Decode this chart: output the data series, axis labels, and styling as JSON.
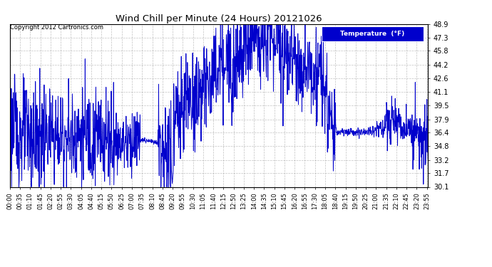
{
  "title": "Wind Chill per Minute (24 Hours) 20121026",
  "copyright_text": "Copyright 2012 Cartronics.com",
  "legend_label": "Temperature  (°F)",
  "line_color": "#0000CC",
  "background_color": "#ffffff",
  "plot_bg_color": "#ffffff",
  "grid_color": "#999999",
  "ylim": [
    30.1,
    48.9
  ],
  "yticks": [
    30.1,
    31.7,
    33.2,
    34.8,
    36.4,
    37.9,
    39.5,
    41.1,
    42.6,
    44.2,
    45.8,
    47.3,
    48.9
  ],
  "x_tick_labels": [
    "00:00",
    "00:35",
    "01:10",
    "01:45",
    "02:20",
    "02:55",
    "03:30",
    "04:05",
    "04:40",
    "05:15",
    "05:50",
    "06:25",
    "07:00",
    "07:35",
    "08:10",
    "08:45",
    "09:20",
    "09:55",
    "10:30",
    "11:05",
    "11:40",
    "12:15",
    "12:50",
    "13:25",
    "14:00",
    "14:35",
    "15:10",
    "15:45",
    "16:20",
    "16:55",
    "17:30",
    "18:05",
    "18:40",
    "19:15",
    "19:50",
    "20:25",
    "21:00",
    "21:35",
    "22:10",
    "22:45",
    "23:20",
    "23:55"
  ]
}
